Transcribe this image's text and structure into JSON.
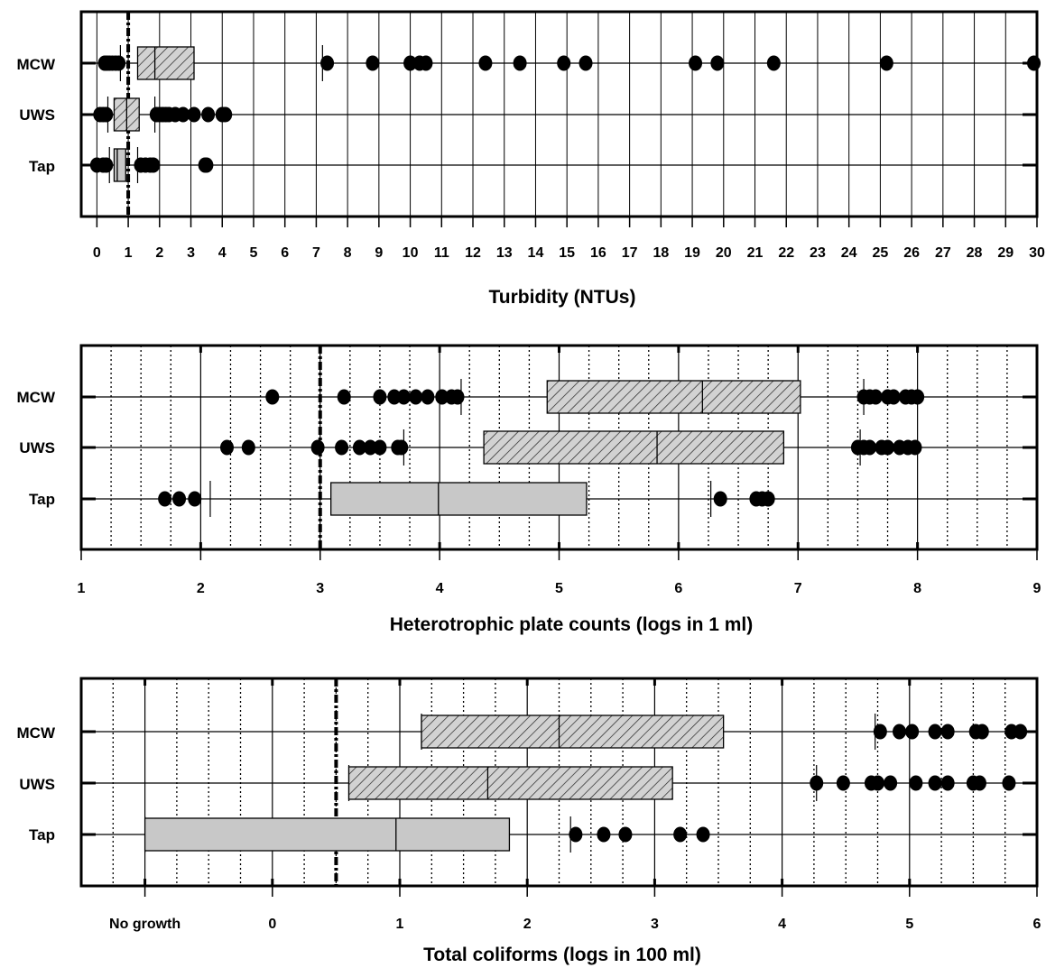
{
  "chart_data": [
    {
      "type": "box",
      "xlabel": "Turbidity (NTUs)",
      "xlim": [
        -0.5,
        30
      ],
      "ticks": [
        0,
        1,
        2,
        3,
        4,
        5,
        6,
        7,
        8,
        9,
        10,
        11,
        12,
        13,
        14,
        15,
        16,
        17,
        18,
        19,
        20,
        21,
        22,
        23,
        24,
        25,
        26,
        27,
        28,
        29,
        30
      ],
      "tick_labels": [
        "0",
        "1",
        "2",
        "3",
        "4",
        "5",
        "6",
        "7",
        "8",
        "9",
        "10",
        "11",
        "12",
        "13",
        "14",
        "15",
        "16",
        "17",
        "18",
        "19",
        "20",
        "21",
        "22",
        "23",
        "24",
        "25",
        "26",
        "27",
        "28",
        "29",
        "30"
      ],
      "grid_x": [
        0,
        1,
        2,
        3,
        4,
        5,
        6,
        7,
        8,
        9,
        10,
        11,
        12,
        13,
        14,
        15,
        16,
        17,
        18,
        19,
        20,
        21,
        22,
        23,
        24,
        25,
        26,
        27,
        28,
        29,
        30
      ],
      "grid_style": "solid",
      "dash_dot_line": 1,
      "series": [
        {
          "name": "MCW",
          "fill": "hatch",
          "q1": 1.3,
          "median": 1.85,
          "q3": 3.1,
          "whisker_lo": 0.75,
          "whisker_hi": 7.2,
          "outliers": [
            0.25,
            0.32,
            0.4,
            0.5,
            0.6,
            0.7,
            7.35,
            8.8,
            10.0,
            10.3,
            10.5,
            12.4,
            13.5,
            14.9,
            15.6,
            19.1,
            19.8,
            21.6,
            25.2,
            29.9
          ]
        },
        {
          "name": "UWS",
          "fill": "hatch",
          "q1": 0.55,
          "median": 0.95,
          "q3": 1.35,
          "whisker_lo": 0.35,
          "whisker_hi": 1.85,
          "outliers": [
            0.1,
            0.2,
            0.3,
            1.9,
            2.0,
            2.1,
            2.2,
            2.3,
            2.5,
            2.75,
            3.1,
            3.55,
            4.0,
            4.1
          ]
        },
        {
          "name": "Tap",
          "fill": "solid",
          "q1": 0.55,
          "median": 0.65,
          "q3": 0.92,
          "whisker_lo": 0.4,
          "whisker_hi": 1.3,
          "outliers": [
            0.0,
            0.2,
            0.3,
            1.4,
            1.55,
            1.7,
            1.8,
            3.45,
            3.5
          ]
        }
      ]
    },
    {
      "type": "box",
      "xlabel": "Heterotrophic plate counts (logs in 1 ml)",
      "xlim": [
        1,
        9
      ],
      "ticks": [
        1,
        2,
        3,
        4,
        5,
        6,
        7,
        8,
        9
      ],
      "tick_labels": [
        "1",
        "2",
        "3",
        "4",
        "5",
        "6",
        "7",
        "8",
        "9"
      ],
      "grid_x": [
        1.25,
        1.5,
        1.75,
        2.25,
        2.5,
        2.75,
        3.25,
        3.5,
        3.75,
        4.25,
        4.5,
        4.75,
        5.25,
        5.5,
        5.75,
        6.25,
        6.5,
        6.75,
        7.25,
        7.5,
        7.75,
        8.25,
        8.5,
        8.75
      ],
      "major_x": [
        2,
        3,
        4,
        5,
        6,
        7,
        8
      ],
      "grid_style": "dotted",
      "dash_dot_line": 3,
      "series": [
        {
          "name": "MCW",
          "fill": "hatch",
          "q1": 4.9,
          "median": 6.2,
          "q3": 7.02,
          "whisker_lo": 4.18,
          "whisker_hi": 7.55,
          "outliers": [
            2.6,
            3.2,
            3.5,
            3.62,
            3.7,
            3.8,
            3.9,
            4.02,
            4.1,
            4.15,
            7.55,
            7.6,
            7.65,
            7.75,
            7.8,
            7.9,
            7.95,
            8.0
          ]
        },
        {
          "name": "UWS",
          "fill": "hatch",
          "q1": 4.37,
          "median": 5.82,
          "q3": 6.88,
          "whisker_lo": 3.7,
          "whisker_hi": 7.52,
          "outliers": [
            2.22,
            2.4,
            2.98,
            3.18,
            3.33,
            3.42,
            3.5,
            3.65,
            3.68,
            7.5,
            7.55,
            7.6,
            7.7,
            7.75,
            7.85,
            7.92,
            7.98
          ]
        },
        {
          "name": "Tap",
          "fill": "solid",
          "q1": 3.09,
          "median": 3.99,
          "q3": 5.23,
          "whisker_lo": 2.08,
          "whisker_hi": 6.27,
          "outliers": [
            1.7,
            1.82,
            1.95,
            6.35,
            6.65,
            6.7,
            6.75
          ]
        }
      ]
    },
    {
      "type": "box",
      "xlabel": "Total coliforms (logs in 100 ml)",
      "xlim": [
        -1.5,
        6
      ],
      "ticks": [
        -1,
        0,
        1,
        2,
        3,
        4,
        5,
        6
      ],
      "tick_labels": [
        "No growth",
        "0",
        "1",
        "2",
        "3",
        "4",
        "5",
        "6"
      ],
      "grid_x": [
        -1.25,
        -0.75,
        -0.5,
        -0.25,
        0.25,
        0.5,
        0.75,
        1.25,
        1.5,
        1.75,
        2.25,
        2.5,
        2.75,
        3.25,
        3.5,
        3.75,
        4.25,
        4.5,
        4.75,
        5.25,
        5.5,
        5.75
      ],
      "major_x": [
        -1,
        0,
        1,
        2,
        3,
        4,
        5
      ],
      "grid_style": "dotted",
      "dash_dot_line": 0.5,
      "series": [
        {
          "name": "MCW",
          "fill": "hatch",
          "q1": 1.17,
          "median": 2.25,
          "q3": 3.54,
          "whisker_lo": 1.17,
          "whisker_hi": 4.73,
          "outliers": [
            4.77,
            4.92,
            5.02,
            5.2,
            5.3,
            5.52,
            5.57,
            5.8,
            5.87
          ]
        },
        {
          "name": "UWS",
          "fill": "hatch",
          "q1": 0.6,
          "median": 1.69,
          "q3": 3.14,
          "whisker_lo": 0.6,
          "whisker_hi": 4.27,
          "outliers": [
            4.27,
            4.48,
            4.7,
            4.75,
            4.85,
            5.05,
            5.2,
            5.3,
            5.5,
            5.55,
            5.78
          ]
        },
        {
          "name": "Tap",
          "fill": "solid",
          "q1": -1.0,
          "median": 0.97,
          "q3": 1.86,
          "whisker_lo": -1.0,
          "whisker_hi": 2.34,
          "outliers": [
            2.38,
            2.6,
            2.77,
            3.2,
            3.38
          ]
        }
      ]
    }
  ]
}
